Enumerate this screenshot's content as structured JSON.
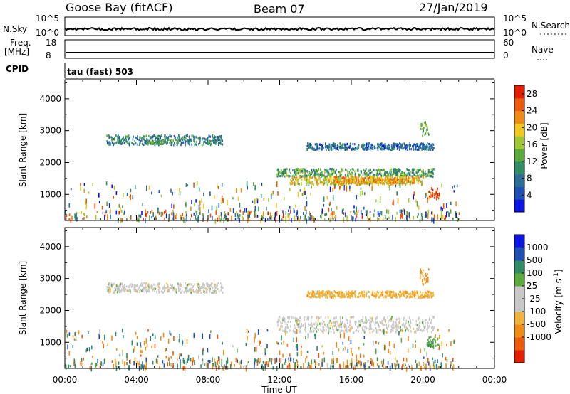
{
  "header": {
    "station": "Goose Bay (fitACF)",
    "beam": "Beam 07",
    "date": "27/Jan/2019"
  },
  "param_panels": {
    "nsky_label": "N.Sky",
    "nsearch_label": "N.Search",
    "nsky_ticks": [
      "10^5",
      "10^0"
    ],
    "nsearch_ticks": [
      "10^5",
      "10^0"
    ],
    "freq_label": "Freq.",
    "freq_unit": "[MHz]",
    "freq_ticks": [
      "18",
      "8"
    ],
    "nave_label": "Nave",
    "nave_ticks": [
      "60",
      "0"
    ],
    "cpid_label": "CPID",
    "cpid_value": "tau (fast) 503"
  },
  "colors": {
    "power": [
      "#0a14e6",
      "#1e50b4",
      "#2a6e98",
      "#2f8c64",
      "#5aaa3c",
      "#a0c832",
      "#f0c81e",
      "#f08c14",
      "#ec5a0a",
      "#e61e00"
    ],
    "velocity": [
      "#e61e00",
      "#ec5a0a",
      "#f08c14",
      "#f0b43c",
      "#c8c8c8",
      "#c8c8c8",
      "#5aaa3c",
      "#2f8c64",
      "#1e50b4",
      "#0a14e6"
    ]
  },
  "chart_data": [
    {
      "type": "heatmap",
      "name": "power",
      "x_axis": {
        "range": [
          "00:00",
          "24:00"
        ],
        "tick_labels": [
          "00:00",
          "04:00",
          "08:00",
          "12:00",
          "16:00",
          "20:00",
          "00:00"
        ],
        "label": "Time UT"
      },
      "ylabel": "Slant Range [km]",
      "ylim": [
        180,
        4600
      ],
      "yticks": [
        1000,
        2000,
        3000,
        4000
      ],
      "colorbar": {
        "label": "Power [dB]",
        "tick_labels": [
          "4",
          "8",
          "12",
          "16",
          "20",
          "24",
          "28"
        ],
        "range": [
          0,
          30
        ]
      },
      "echo_regions": [
        {
          "t_start": 2.3,
          "t_end": 8.8,
          "r_min": 2550,
          "r_max": 2850,
          "value": 9
        },
        {
          "t_start": 4.6,
          "t_end": 5.5,
          "r_min": 2580,
          "r_max": 2680,
          "value": 13
        },
        {
          "t_start": 11.8,
          "t_end": 20.6,
          "r_min": 1550,
          "r_max": 1800,
          "value": 12
        },
        {
          "t_start": 12.5,
          "t_end": 20.0,
          "r_min": 1300,
          "r_max": 1550,
          "value": 19
        },
        {
          "t_start": 15.0,
          "t_end": 19.5,
          "r_min": 1350,
          "r_max": 1550,
          "value": 22
        },
        {
          "t_start": 13.5,
          "t_end": 20.6,
          "r_min": 2400,
          "r_max": 2600,
          "value": 7
        },
        {
          "t_start": 19.8,
          "t_end": 20.3,
          "r_min": 2800,
          "r_max": 3300,
          "value": 14
        },
        {
          "t_start": 20.2,
          "t_end": 20.9,
          "r_min": 850,
          "r_max": 1200,
          "value": 26
        },
        {
          "t_start": 0.0,
          "t_end": 22.0,
          "r_min": 200,
          "r_max": 1400,
          "value": 8
        }
      ]
    },
    {
      "type": "heatmap",
      "name": "velocity",
      "x_axis": {
        "range": [
          "00:00",
          "24:00"
        ],
        "tick_labels": [
          "00:00",
          "04:00",
          "08:00",
          "12:00",
          "16:00",
          "20:00",
          "00:00"
        ],
        "label": "Time UT"
      },
      "ylabel": "Slant Range [km]",
      "ylim": [
        180,
        4600
      ],
      "yticks": [
        1000,
        2000,
        3000,
        4000
      ],
      "colorbar": {
        "label": "Velocity [m s^-1]",
        "tick_labels": [
          "1000",
          "500",
          "100",
          "25",
          "-25",
          "-100",
          "-500",
          "-1000"
        ]
      },
      "echo_regions": [
        {
          "t_start": 2.3,
          "t_end": 8.8,
          "r_min": 2550,
          "r_max": 2850,
          "value": 0
        },
        {
          "t_start": 11.8,
          "t_end": 20.6,
          "r_min": 1300,
          "r_max": 1800,
          "value": 0
        },
        {
          "t_start": 13.5,
          "t_end": 20.6,
          "r_min": 2400,
          "r_max": 2600,
          "value": -80
        },
        {
          "t_start": 19.8,
          "t_end": 20.3,
          "r_min": 2800,
          "r_max": 3300,
          "value": -300
        },
        {
          "t_start": 20.2,
          "t_end": 20.9,
          "r_min": 850,
          "r_max": 1200,
          "value": 80
        },
        {
          "t_start": 0.0,
          "t_end": 22.0,
          "r_min": 200,
          "r_max": 1400,
          "value": -50
        }
      ]
    }
  ]
}
